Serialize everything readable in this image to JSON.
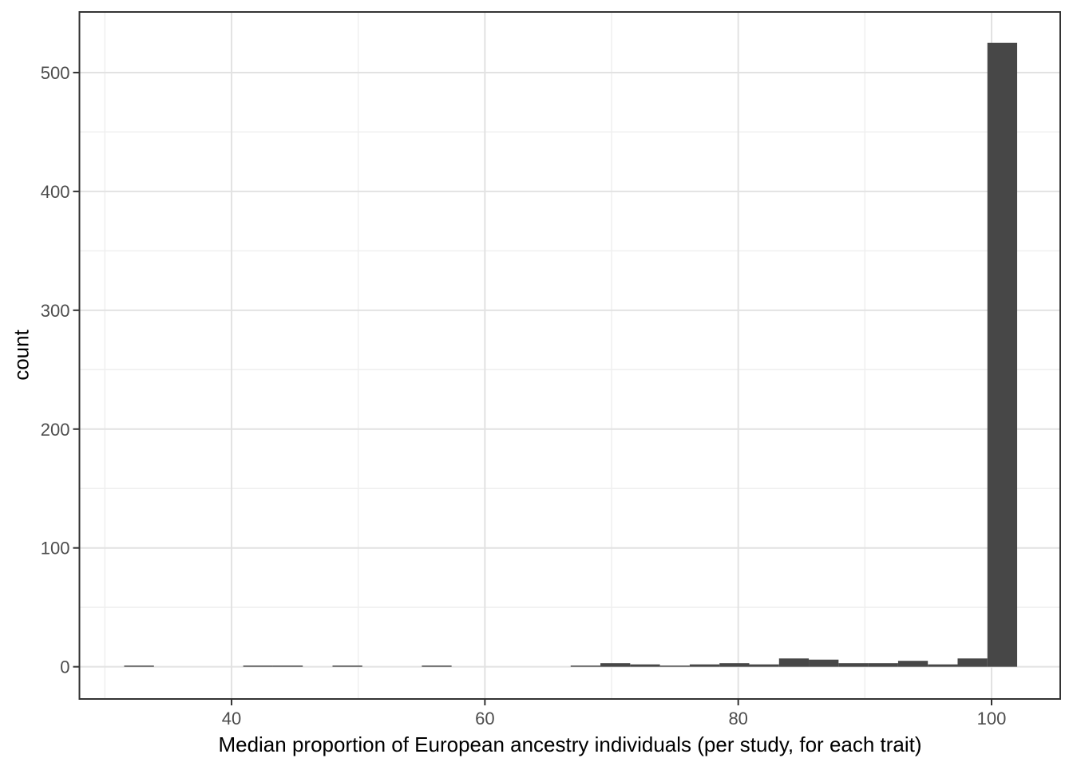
{
  "chart_data": {
    "type": "bar",
    "subtype": "histogram",
    "title": "",
    "xlabel": "Median proportion of European ancestry individuals (per study, for each trait)",
    "ylabel": "count",
    "bins": {
      "start": 31.52,
      "width": 2.35,
      "counts": [
        1,
        0,
        0,
        0,
        1,
        1,
        0,
        1,
        0,
        0,
        1,
        0,
        0,
        0,
        0,
        1,
        3,
        2,
        1,
        2,
        3,
        2,
        7,
        6,
        3,
        3,
        5,
        2,
        7,
        525
      ]
    },
    "bin_centers": [
      32.7,
      35.05,
      37.4,
      39.75,
      42.1,
      44.45,
      46.8,
      49.15,
      51.5,
      53.85,
      56.2,
      58.55,
      60.9,
      63.25,
      65.6,
      67.95,
      70.3,
      72.65,
      75.0,
      77.35,
      79.7,
      82.05,
      84.4,
      86.75,
      89.1,
      91.45,
      93.8,
      96.15,
      98.5,
      100.85
    ],
    "x_ticks": [
      40,
      60,
      80,
      100
    ],
    "x_tick_labels": [
      "40",
      "60",
      "80",
      "100"
    ],
    "x_minor_ticks": [
      30,
      50,
      70,
      90
    ],
    "y_ticks": [
      0,
      100,
      200,
      300,
      400,
      500
    ],
    "y_tick_labels": [
      "0",
      "100",
      "200",
      "300",
      "400",
      "500"
    ],
    "y_minor_ticks": [
      50,
      150,
      250,
      350,
      450
    ],
    "xlim": [
      27.99,
      105.42
    ],
    "ylim": [
      -27.1,
      551.0
    ],
    "grid": true,
    "legend": false,
    "max_bar_count": 525,
    "colors": {
      "bar_fill": "#474747",
      "panel_background": "#ffffff",
      "panel_border": "#333333",
      "grid_major": "#e2e2e2",
      "grid_minor": "#efefef",
      "tick_mark": "#333333",
      "tick_label": "#4d4d4d",
      "axis_title": "#000000"
    }
  }
}
